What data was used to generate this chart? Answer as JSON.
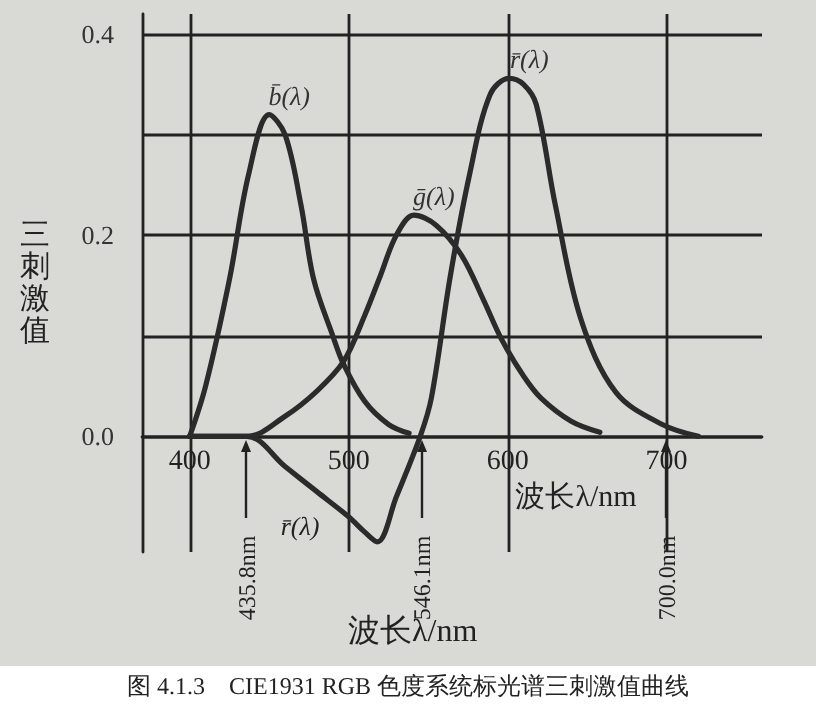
{
  "chart_data": {
    "type": "line",
    "title": "图 4.1.3　CIE1931 RGB 色度系统标光谱三刺激值曲线",
    "xlabel": "波长λ/nm",
    "ylabel": "三刺激值",
    "xlim": [
      370,
      760
    ],
    "xticks": [
      400,
      500,
      600,
      700
    ],
    "ylim": [
      -0.115,
      0.42
    ],
    "yticks": [
      {
        "value": 0,
        "label": "0.0"
      },
      {
        "value": 0.1,
        "label": null
      },
      0.2,
      {
        "value": 0.3,
        "label": null
      },
      0.4
    ],
    "grid": true,
    "marker": "none",
    "line_style": "solid",
    "series": [
      {
        "name": "b̄(λ)",
        "color": "#2b2b2b",
        "x": [
          400,
          410,
          425,
          437,
          450,
          460,
          470,
          478,
          490,
          497,
          510,
          525,
          538
        ],
        "values": [
          0,
          0.05,
          0.156,
          0.26,
          0.32,
          0.3,
          0.23,
          0.156,
          0.1,
          0.071,
          0.035,
          0.012,
          0.003
        ]
      },
      {
        "name": "ḡ(λ)",
        "color": "#2b2b2b",
        "x": [
          400,
          436,
          460,
          480,
          497,
          510,
          520,
          530,
          541,
          555,
          571,
          585,
          596,
          610,
          621,
          640,
          658
        ],
        "values": [
          0,
          0,
          0.02,
          0.045,
          0.075,
          0.12,
          0.16,
          0.2,
          0.22,
          0.21,
          0.18,
          0.135,
          0.097,
          0.06,
          0.038,
          0.015,
          0.004
        ]
      },
      {
        "name": "r̄(λ)",
        "color": "#2b2b2b",
        "x": [
          400,
          436,
          460,
          480,
          500,
          510,
          518,
          530,
          545,
          552,
          564,
          576,
          589,
          601,
          610,
          618,
          630,
          646,
          668,
          697,
          720
        ],
        "values": [
          0,
          0,
          -0.03,
          -0.055,
          -0.08,
          -0.095,
          -0.105,
          -0.06,
          0,
          0.038,
          0.16,
          0.26,
          0.34,
          0.356,
          0.35,
          0.33,
          0.23,
          0.117,
          0.044,
          0.012,
          0
        ]
      }
    ],
    "annotations": [
      {
        "text": "435.8nm",
        "x": 435.8,
        "y": 0
      },
      {
        "text": "546.1nm",
        "x": 546.1,
        "y": 0
      },
      {
        "text": "700.0nm",
        "x": 700,
        "y": 0
      },
      "r̄(λ)",
      "波长λ/nm"
    ]
  }
}
